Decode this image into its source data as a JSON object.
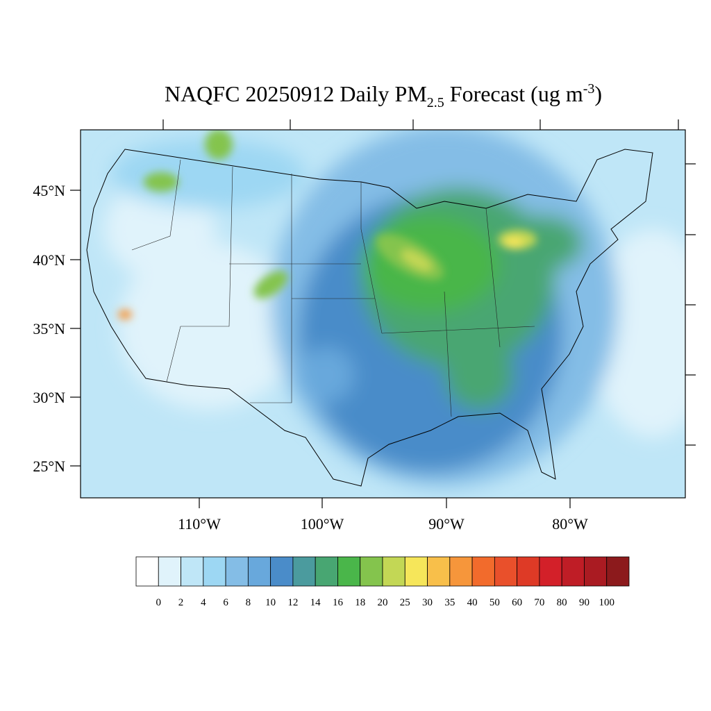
{
  "title": {
    "part1": "NAQFC 20250912 Daily PM",
    "subscript": "2.5",
    "part2": " Forecast (ug m",
    "superscript": "-3",
    "part3": ")"
  },
  "lat_labels": [
    "45°N",
    "40°N",
    "35°N",
    "30°N",
    "25°N"
  ],
  "lon_labels": [
    "110°W",
    "100°W",
    "90°W",
    "80°W"
  ],
  "colorbar": {
    "levels": [
      0,
      2,
      4,
      6,
      8,
      10,
      12,
      14,
      16,
      18,
      20,
      25,
      30,
      35,
      40,
      50,
      60,
      70,
      80,
      90,
      100
    ],
    "colors": [
      "#ffffff",
      "#e0f3fb",
      "#bfe6f7",
      "#9dd7f3",
      "#84bde6",
      "#68a8dc",
      "#4a8cc9",
      "#4b9b9e",
      "#48a672",
      "#4ab64a",
      "#84c44d",
      "#c3d755",
      "#f6e65a",
      "#f8bf4a",
      "#f6963b",
      "#f26b2c",
      "#e9502b",
      "#de3a26",
      "#d32029",
      "#bf1d26",
      "#aa1b22",
      "#8c1a1c"
    ]
  }
}
